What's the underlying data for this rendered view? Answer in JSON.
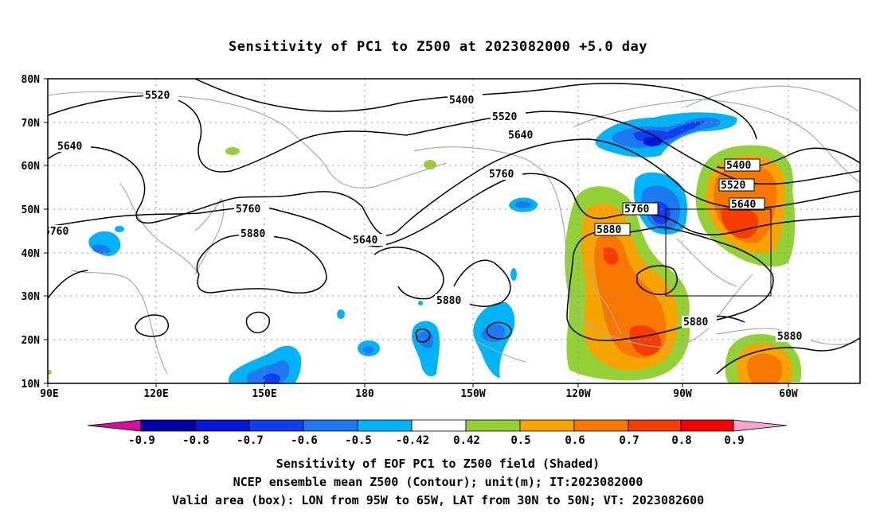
{
  "title": "Sensitivity of PC1 to Z500 at 2023082000 +5.0 day",
  "footer": {
    "line1": "Sensitivity of EOF PC1 to Z500 field (Shaded)",
    "line2": "NCEP ensemble mean Z500 (Contour); unit(m); IT:2023082000",
    "line3": "Valid area (box): LON from 95W to 65W, LAT from 30N to 50N; VT: 2023082600"
  },
  "map": {
    "lon_labels": [
      "90E",
      "120E",
      "150E",
      "180",
      "150W",
      "120W",
      "90W",
      "60W"
    ],
    "lat_labels": [
      "80N",
      "70N",
      "60N",
      "50N",
      "40N",
      "30N",
      "20N",
      "10N"
    ],
    "valid_box": {
      "lon_west": "95W",
      "lon_east": "65W",
      "lat_south": "30N",
      "lat_north": "50N"
    },
    "contour_labels": [
      "5400",
      "5520",
      "5640",
      "5760",
      "5880"
    ]
  },
  "colorbar": {
    "labels": [
      "-0.9",
      "-0.8",
      "-0.7",
      "-0.6",
      "-0.5",
      "-0.42",
      "0.42",
      "0.5",
      "0.6",
      "0.7",
      "0.8",
      "0.9"
    ],
    "colors": [
      "#d60e9f",
      "#0000aa",
      "#0019d9",
      "#0f3ff0",
      "#1e78f0",
      "#00b3f7",
      "#ffffff",
      "#94d137",
      "#f7a300",
      "#f77700",
      "#f73c00",
      "#f70000",
      "#f9a5cf"
    ]
  }
}
